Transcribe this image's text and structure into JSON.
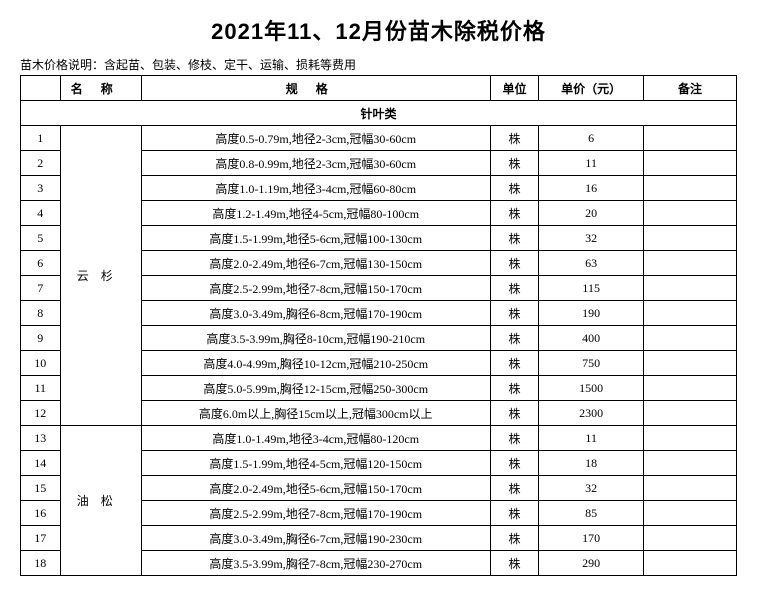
{
  "title": "2021年11、12月份苗木除税价格",
  "note": "苗木价格说明：含起苗、包装、修枝、定干、运输、损耗等费用",
  "headers": {
    "name": "名称",
    "spec": "规格",
    "unit": "单位",
    "price": "单价（元）",
    "remark": "备注"
  },
  "section_label": "针叶类",
  "groups": [
    {
      "name": "云杉",
      "rows": [
        {
          "idx": "1",
          "spec": "高度0.5-0.79m,地径2-3cm,冠幅30-60cm",
          "unit": "株",
          "price": "6",
          "remark": ""
        },
        {
          "idx": "2",
          "spec": "高度0.8-0.99m,地径2-3cm,冠幅30-60cm",
          "unit": "株",
          "price": "11",
          "remark": ""
        },
        {
          "idx": "3",
          "spec": "高度1.0-1.19m,地径3-4cm,冠幅60-80cm",
          "unit": "株",
          "price": "16",
          "remark": ""
        },
        {
          "idx": "4",
          "spec": "高度1.2-1.49m,地径4-5cm,冠幅80-100cm",
          "unit": "株",
          "price": "20",
          "remark": ""
        },
        {
          "idx": "5",
          "spec": "高度1.5-1.99m,地径5-6cm,冠幅100-130cm",
          "unit": "株",
          "price": "32",
          "remark": ""
        },
        {
          "idx": "6",
          "spec": "高度2.0-2.49m,地径6-7cm,冠幅130-150cm",
          "unit": "株",
          "price": "63",
          "remark": ""
        },
        {
          "idx": "7",
          "spec": "高度2.5-2.99m,地径7-8cm,冠幅150-170cm",
          "unit": "株",
          "price": "115",
          "remark": ""
        },
        {
          "idx": "8",
          "spec": "高度3.0-3.49m,胸径6-8cm,冠幅170-190cm",
          "unit": "株",
          "price": "190",
          "remark": ""
        },
        {
          "idx": "9",
          "spec": "高度3.5-3.99m,胸径8-10cm,冠幅190-210cm",
          "unit": "株",
          "price": "400",
          "remark": ""
        },
        {
          "idx": "10",
          "spec": "高度4.0-4.99m,胸径10-12cm,冠幅210-250cm",
          "unit": "株",
          "price": "750",
          "remark": ""
        },
        {
          "idx": "11",
          "spec": "高度5.0-5.99m,胸径12-15cm,冠幅250-300cm",
          "unit": "株",
          "price": "1500",
          "remark": ""
        },
        {
          "idx": "12",
          "spec": "高度6.0m以上,胸径15cm以上,冠幅300cm以上",
          "unit": "株",
          "price": "2300",
          "remark": ""
        }
      ]
    },
    {
      "name": "油松",
      "rows": [
        {
          "idx": "13",
          "spec": "高度1.0-1.49m,地径3-4cm,冠幅80-120cm",
          "unit": "株",
          "price": "11",
          "remark": ""
        },
        {
          "idx": "14",
          "spec": "高度1.5-1.99m,地径4-5cm,冠幅120-150cm",
          "unit": "株",
          "price": "18",
          "remark": ""
        },
        {
          "idx": "15",
          "spec": "高度2.0-2.49m,地径5-6cm,冠幅150-170cm",
          "unit": "株",
          "price": "32",
          "remark": ""
        },
        {
          "idx": "16",
          "spec": "高度2.5-2.99m,地径7-8cm,冠幅170-190cm",
          "unit": "株",
          "price": "85",
          "remark": ""
        },
        {
          "idx": "17",
          "spec": "高度3.0-3.49m,胸径6-7cm,冠幅190-230cm",
          "unit": "株",
          "price": "170",
          "remark": ""
        },
        {
          "idx": "18",
          "spec": "高度3.5-3.99m,胸径7-8cm,冠幅230-270cm",
          "unit": "株",
          "price": "290",
          "remark": ""
        }
      ]
    }
  ]
}
